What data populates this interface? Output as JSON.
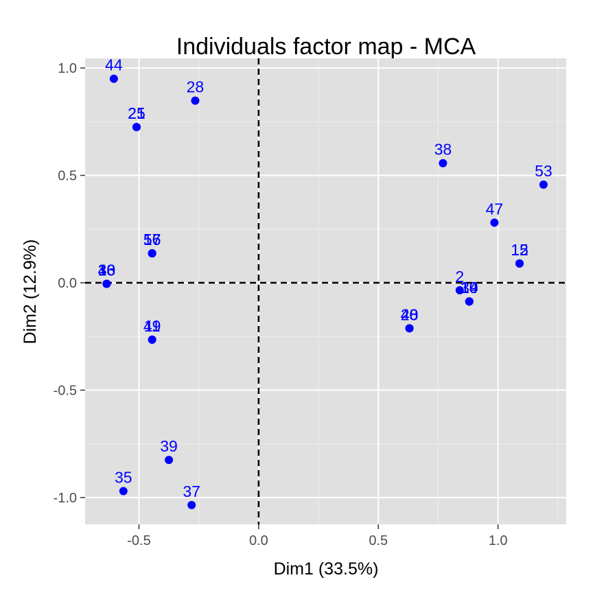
{
  "chart_data": {
    "type": "scatter",
    "title": "Individuals factor map - MCA",
    "xlabel": "Dim1 (33.5%)",
    "ylabel": "Dim2 (12.9%)",
    "xlim": [
      -0.725,
      1.285
    ],
    "ylim": [
      -1.125,
      1.045
    ],
    "xticks": [
      {
        "value": -0.5,
        "label": "-0.5"
      },
      {
        "value": 0.0,
        "label": "0.0"
      },
      {
        "value": 0.5,
        "label": "0.5"
      },
      {
        "value": 1.0,
        "label": "1.0"
      }
    ],
    "yticks": [
      {
        "value": -1.0,
        "label": "-1.0"
      },
      {
        "value": -0.5,
        "label": "-0.5"
      },
      {
        "value": 0.0,
        "label": "0.0"
      },
      {
        "value": 0.5,
        "label": "0.5"
      },
      {
        "value": 1.0,
        "label": "1.0"
      }
    ],
    "grid": true,
    "reference_lines": {
      "x": 0,
      "y": 0,
      "style": "dashed"
    },
    "colors": {
      "panel_background": "#e0e0e0",
      "grid_major": "#ffffff",
      "grid_minor": "#eeeeee",
      "point": "#0000ff",
      "label": "#0000ff",
      "reference_line": "#000000"
    },
    "points": [
      {
        "label": "44",
        "x": -0.605,
        "y": 0.95
      },
      {
        "label": "28",
        "x": -0.265,
        "y": 0.848
      },
      {
        "label": "25",
        "x": -0.51,
        "y": 0.725
      },
      {
        "label": "21",
        "x": -0.51,
        "y": 0.725
      },
      {
        "label": "57",
        "x": -0.445,
        "y": 0.137
      },
      {
        "label": "16",
        "x": -0.445,
        "y": 0.137
      },
      {
        "label": "56",
        "x": -0.445,
        "y": 0.137
      },
      {
        "label": "33",
        "x": -0.635,
        "y": -0.005
      },
      {
        "label": "10",
        "x": -0.635,
        "y": -0.005
      },
      {
        "label": "46",
        "x": -0.635,
        "y": -0.005
      },
      {
        "label": "49",
        "x": -0.445,
        "y": -0.265
      },
      {
        "label": "11",
        "x": -0.445,
        "y": -0.265
      },
      {
        "label": "39",
        "x": -0.375,
        "y": -0.825
      },
      {
        "label": "35",
        "x": -0.565,
        "y": -0.97
      },
      {
        "label": "37",
        "x": -0.28,
        "y": -1.035
      },
      {
        "label": "38",
        "x": 0.77,
        "y": 0.557
      },
      {
        "label": "53",
        "x": 1.19,
        "y": 0.457
      },
      {
        "label": "47",
        "x": 0.985,
        "y": 0.28
      },
      {
        "label": "15",
        "x": 1.09,
        "y": 0.09
      },
      {
        "label": "12",
        "x": 1.09,
        "y": 0.09
      },
      {
        "label": "2",
        "x": 0.84,
        "y": -0.035
      },
      {
        "label": "30",
        "x": 0.88,
        "y": -0.087
      },
      {
        "label": "14",
        "x": 0.88,
        "y": -0.087
      },
      {
        "label": "19",
        "x": 0.88,
        "y": -0.087
      },
      {
        "label": "20",
        "x": 0.63,
        "y": -0.212
      },
      {
        "label": "40",
        "x": 0.63,
        "y": -0.212
      },
      {
        "label": "48",
        "x": 0.63,
        "y": -0.212
      }
    ]
  }
}
